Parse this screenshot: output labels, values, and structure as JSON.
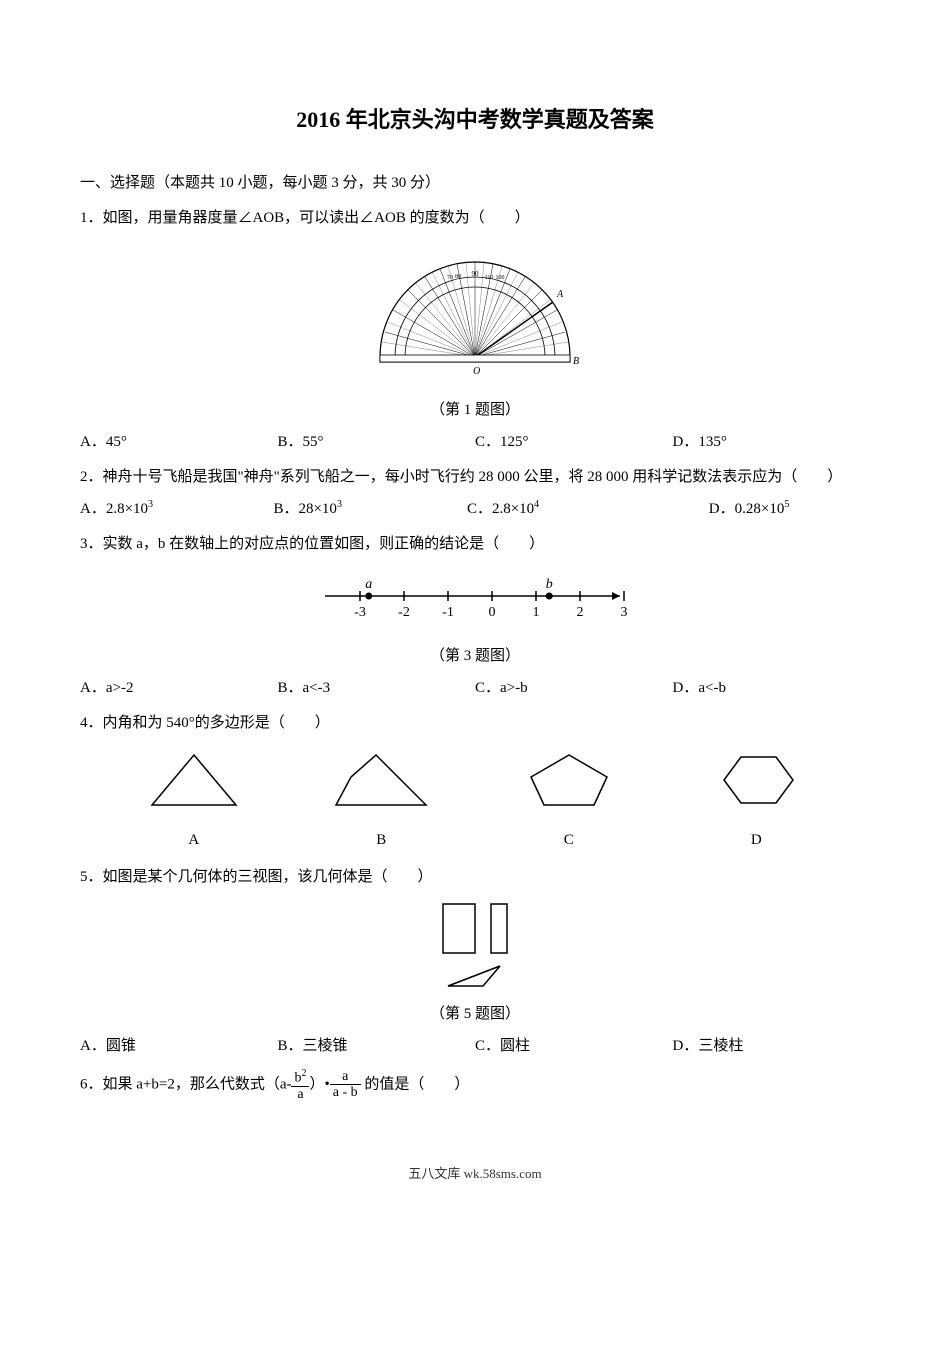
{
  "title": "2016 年北京头沟中考数学真题及答案",
  "section1_header": "一、选择题（本题共 10 小题，每小题 3 分，共 30 分）",
  "q1": {
    "text": "1．如图，用量角器度量∠AOB，可以读出∠AOB 的度数为（　　）",
    "caption": "（第 1 题图）",
    "optA": "A．45°",
    "optB": "B．55°",
    "optC": "C．125°",
    "optD": "D．135°"
  },
  "q2": {
    "text": "2．神舟十号飞船是我国\"神舟\"系列飞船之一，每小时飞行约 28 000 公里，将 28 000 用科学记数法表示应为（　　）",
    "optA_pre": "A．2.8×10",
    "optA_sup": "3",
    "optB_pre": "B．28×10",
    "optB_sup": "3",
    "optC_pre": "C．2.8×10",
    "optC_sup": "4",
    "optD_pre": "D．0.28×10",
    "optD_sup": "5"
  },
  "q3": {
    "text": "3．实数 a，b 在数轴上的对应点的位置如图，则正确的结论是（　　）",
    "caption": "（第 3 题图）",
    "optA": "A．a>-2",
    "optB": "B．a<-3",
    "optC": "C．a>-b",
    "optD": "D．a<-b",
    "ticks": [
      "-3",
      "-2",
      "-1",
      "0",
      "1",
      "2",
      "3"
    ],
    "a_label": "a",
    "b_label": "b",
    "a_pos": -2.8,
    "b_pos": 1.3
  },
  "q4": {
    "text": "4．内角和为 540°的多边形是（　　）",
    "labelA": "A",
    "labelB": "B",
    "labelC": "C",
    "labelD": "D"
  },
  "q5": {
    "text": "5．如图是某个几何体的三视图，该几何体是（　　）",
    "caption": "（第 5 题图）",
    "optA": "A．圆锥",
    "optB": "B．三棱锥",
    "optC": "C．圆柱",
    "optD": "D．三棱柱"
  },
  "q6": {
    "text_pre": "6．如果 a+b=2，那么代数式（a-",
    "frac1_num": "b",
    "frac1_num_sup": "2",
    "frac1_den": "a",
    "text_mid": "）•",
    "frac2_num": "a",
    "frac2_den": "a - b",
    "text_post": " 的值是（　　）"
  },
  "footer": "五八文库 wk.58sms.com",
  "colors": {
    "text": "#000000",
    "bg": "#ffffff",
    "green": "#7eb83e"
  }
}
